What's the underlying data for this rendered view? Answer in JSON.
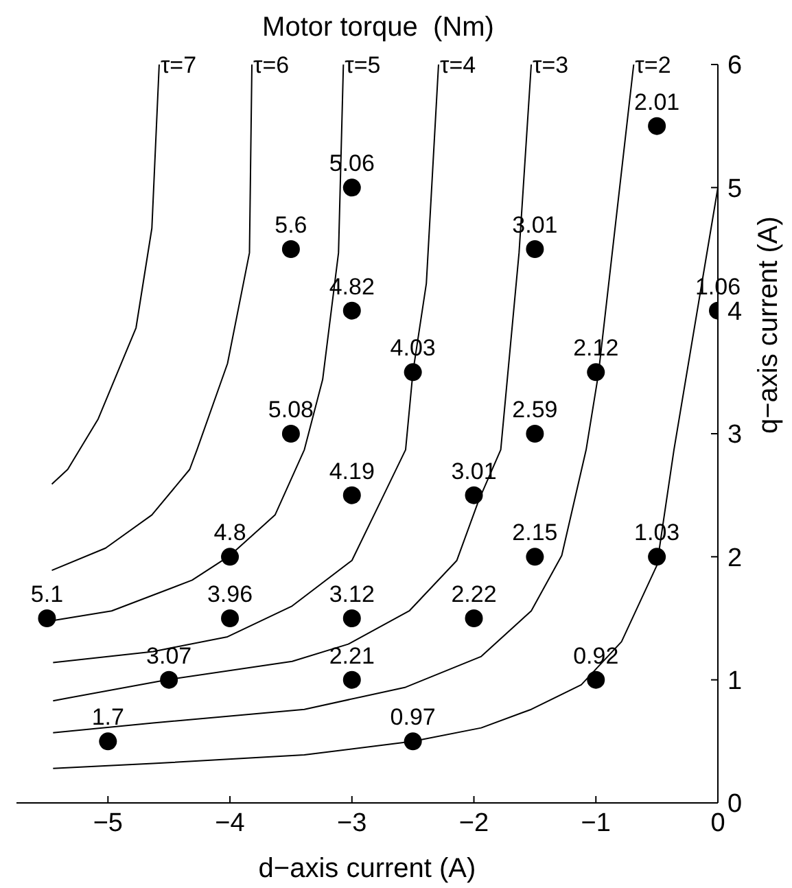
{
  "chart_data": {
    "type": "line",
    "title": "Motor torque  (Nm)",
    "xlabel": "d−axis current (A)",
    "ylabel": "q−axis current (A)",
    "xlim": [
      -5.75,
      0
    ],
    "xticks": [
      {
        "value": -5,
        "label": "−5"
      },
      {
        "value": -4,
        "label": "−4"
      },
      {
        "value": -3,
        "label": "−3"
      },
      {
        "value": -2,
        "label": "−2"
      },
      {
        "value": -1,
        "label": "−1"
      },
      0
    ],
    "ylim": [
      0,
      6
    ],
    "yticks": [
      0,
      1,
      2,
      3,
      4,
      5,
      6
    ],
    "legend": false,
    "series": [
      {
        "color": "#000000",
        "x": [
          -5.45,
          -4.63,
          -3.39,
          -2.5,
          -1.94,
          -1.53,
          -1.12,
          -0.79,
          -0.5,
          -0.36,
          0
        ],
        "values": [
          0.28,
          0.32,
          0.39,
          0.5,
          0.61,
          0.76,
          0.96,
          1.31,
          1.93,
          2.87,
          5
        ]
      },
      {
        "name": "τ=2",
        "color": "#000000",
        "x": [
          -5.45,
          -4.63,
          -3.39,
          -2.56,
          -1.94,
          -1.53,
          -1.28,
          -1.08,
          -0.98,
          -0.69
        ],
        "values": [
          0.57,
          0.65,
          0.76,
          0.94,
          1.19,
          1.56,
          2.01,
          2.87,
          3.48,
          6
        ]
      },
      {
        "name": "τ=3",
        "color": "#000000",
        "x": [
          -5.45,
          -4.52,
          -3.49,
          -3.03,
          -2.53,
          -2.14,
          -1.96,
          -1.78,
          -1.63,
          -1.53
        ],
        "values": [
          0.83,
          1,
          1.15,
          1.29,
          1.56,
          1.97,
          2.46,
          2.87,
          4.47,
          6
        ]
      },
      {
        "name": "τ=4",
        "color": "#000000",
        "x": [
          -5.45,
          -4.63,
          -4.02,
          -3.49,
          -3,
          -2.76,
          -2.56,
          -2.5,
          -2.39,
          -2.29
        ],
        "values": [
          1.14,
          1.23,
          1.35,
          1.6,
          1.97,
          2.46,
          2.87,
          3.5,
          4.22,
          6
        ]
      },
      {
        "name": "τ=5",
        "color": "#000000",
        "x": [
          -5.46,
          -4.97,
          -4.31,
          -4,
          -3.63,
          -3.39,
          -3.24,
          -3.11,
          -3.07
        ],
        "values": [
          1.48,
          1.56,
          1.81,
          2.01,
          2.34,
          2.87,
          3.44,
          4.47,
          6
        ]
      },
      {
        "name": "τ=6",
        "color": "#000000",
        "x": [
          -5.46,
          -5.02,
          -4.64,
          -4.33,
          -4.27,
          -4.02,
          -3.84,
          -3.82
        ],
        "values": [
          1.89,
          2.07,
          2.34,
          2.71,
          2.87,
          3.57,
          4.47,
          6
        ]
      },
      {
        "name": "τ=7",
        "color": "#000000",
        "x": [
          -5.46,
          -5.33,
          -5.08,
          -4.77,
          -4.64,
          -4.58
        ],
        "values": [
          2.59,
          2.71,
          3.12,
          3.86,
          4.67,
          6
        ]
      },
      {
        "type": "scatter",
        "color": "#000000",
        "marker": "circle",
        "x": [
          -0.5,
          -3,
          -3.5,
          -1.5,
          -3,
          0,
          -2.5,
          -1,
          -3.5,
          -1.5,
          -3,
          -2,
          -4,
          -1.5,
          -0.5,
          -5.5,
          -4,
          -3,
          -2,
          -4.5,
          -3,
          -1,
          -5,
          -2.5
        ],
        "values": [
          5.5,
          5,
          4.5,
          4.5,
          4,
          4,
          3.5,
          3.5,
          3,
          3,
          2.5,
          2.5,
          2,
          2,
          2,
          1.5,
          1.5,
          1.5,
          1.5,
          1,
          1,
          1,
          0.5,
          0.5
        ]
      }
    ],
    "annotations": [
      {
        "text": "2.01",
        "x": -0.5,
        "y": 5.5
      },
      {
        "text": "5.06",
        "x": -3,
        "y": 5
      },
      {
        "text": "5.6",
        "x": -3.5,
        "y": 4.5
      },
      {
        "text": "3.01",
        "x": -1.5,
        "y": 4.5
      },
      {
        "text": "4.82",
        "x": -3,
        "y": 4
      },
      {
        "text": "1.06",
        "x": 0,
        "y": 4
      },
      {
        "text": "4.03",
        "x": -2.5,
        "y": 3.5
      },
      {
        "text": "2.12",
        "x": -1,
        "y": 3.5
      },
      {
        "text": "5.08",
        "x": -3.5,
        "y": 3
      },
      {
        "text": "2.59",
        "x": -1.5,
        "y": 3
      },
      {
        "text": "4.19",
        "x": -3,
        "y": 2.5
      },
      {
        "text": "3.01",
        "x": -2,
        "y": 2.5
      },
      {
        "text": "4.8",
        "x": -4,
        "y": 2
      },
      {
        "text": "2.15",
        "x": -1.5,
        "y": 2
      },
      {
        "text": "1.03",
        "x": -0.5,
        "y": 2
      },
      {
        "text": "5.1",
        "x": -5.5,
        "y": 1.5
      },
      {
        "text": "3.96",
        "x": -4,
        "y": 1.5
      },
      {
        "text": "3.12",
        "x": -3,
        "y": 1.5
      },
      {
        "text": "2.22",
        "x": -2,
        "y": 1.5
      },
      {
        "text": "3.07",
        "x": -4.5,
        "y": 1
      },
      {
        "text": "2.21",
        "x": -3,
        "y": 1
      },
      {
        "text": "0.92",
        "x": -1,
        "y": 1
      },
      {
        "text": "1.7",
        "x": -5,
        "y": 0.5
      },
      {
        "text": "0.97",
        "x": -2.5,
        "y": 0.5
      }
    ]
  }
}
